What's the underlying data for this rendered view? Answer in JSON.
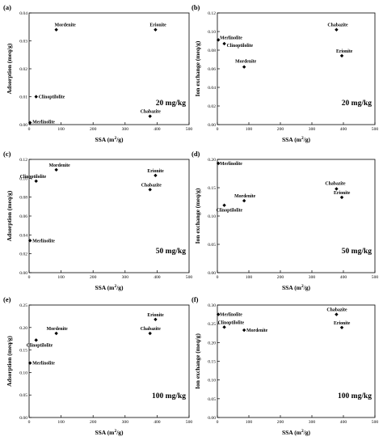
{
  "figure": {
    "panels": [
      {
        "letter": "(a)",
        "concentration": "20 mg/kg",
        "chart_data": {
          "type": "scatter",
          "xlabel_main": "SSA (m",
          "xlabel_sup": "2",
          "xlabel_tail": "/g)",
          "ylabel": "Adsorption (meq/g)",
          "xlim": [
            0,
            500
          ],
          "ylim": [
            0,
            0.04
          ],
          "xticks": [
            "0",
            "100",
            "200",
            "300",
            "400",
            "500"
          ],
          "yticks": [
            "0.00",
            "0.01",
            "0.02",
            "0.03",
            "0.04"
          ],
          "points": [
            {
              "label": "Mordenite",
              "x": 85,
              "y": 0.034
            },
            {
              "label": "Erionite",
              "x": 395,
              "y": 0.034
            },
            {
              "label": "Clinoptilolite",
              "x": 22,
              "y": 0.01
            },
            {
              "label": "Chabazite",
              "x": 378,
              "y": 0.003
            },
            {
              "label": "Merlinolite",
              "x": 3,
              "y": 0.0007
            }
          ]
        }
      },
      {
        "letter": "(b)",
        "concentration": "20 mg/kg",
        "chart_data": {
          "type": "scatter",
          "xlabel_main": "SSA (m",
          "xlabel_sup": "2",
          "xlabel_tail": "/g)",
          "ylabel": "Ion exchange (meq/g)",
          "xlim": [
            0,
            500
          ],
          "ylim": [
            0,
            0.12
          ],
          "xticks": [
            "0",
            "100",
            "200",
            "300",
            "400",
            "500"
          ],
          "yticks": [
            "0.00",
            "0.02",
            "0.04",
            "0.06",
            "0.08",
            "0.10",
            "0.12"
          ],
          "points": [
            {
              "label": "Merlinolite",
              "x": 3,
              "y": 0.091
            },
            {
              "label": "Clinoptilolite",
              "x": 22,
              "y": 0.087
            },
            {
              "label": "Mordenite",
              "x": 85,
              "y": 0.062
            },
            {
              "label": "Chabazite",
              "x": 378,
              "y": 0.102
            },
            {
              "label": "Erionite",
              "x": 395,
              "y": 0.074
            }
          ]
        }
      },
      {
        "letter": "(c)",
        "concentration": "50 mg/kg",
        "chart_data": {
          "type": "scatter",
          "xlabel_main": "SSA (m",
          "xlabel_sup": "2",
          "xlabel_tail": "/g)",
          "ylabel": "Adsorption (meq/g)",
          "xlim": [
            0,
            500
          ],
          "ylim": [
            0,
            0.12
          ],
          "xticks": [
            "0",
            "100",
            "200",
            "300",
            "400",
            "500"
          ],
          "yticks": [
            "0.00",
            "0.02",
            "0.04",
            "0.06",
            "0.08",
            "0.10",
            "0.12"
          ],
          "points": [
            {
              "label": "Mordenite",
              "x": 85,
              "y": 0.109
            },
            {
              "label": "Clinoptilolite",
              "x": 22,
              "y": 0.097
            },
            {
              "label": "Erionite",
              "x": 395,
              "y": 0.103
            },
            {
              "label": "Chabazite",
              "x": 378,
              "y": 0.088
            },
            {
              "label": "Merlinolite",
              "x": 3,
              "y": 0.034
            }
          ]
        }
      },
      {
        "letter": "(d)",
        "concentration": "50 mg/kg",
        "chart_data": {
          "type": "scatter",
          "xlabel_main": "SSA (m",
          "xlabel_sup": "2",
          "xlabel_tail": "/g)",
          "ylabel": "Ion exchange (meq/g)",
          "xlim": [
            0,
            500
          ],
          "ylim": [
            0,
            0.2
          ],
          "xticks": [
            "0",
            "100",
            "200",
            "300",
            "400",
            "500"
          ],
          "yticks": [
            "0.00",
            "0.05",
            "0.10",
            "0.15",
            "0.20"
          ],
          "points": [
            {
              "label": "Merlinolite",
              "x": 3,
              "y": 0.193
            },
            {
              "label": "Mordenite",
              "x": 85,
              "y": 0.127
            },
            {
              "label": "Clinoptilolite",
              "x": 22,
              "y": 0.119
            },
            {
              "label": "Chabazite",
              "x": 378,
              "y": 0.148
            },
            {
              "label": "Erionite",
              "x": 395,
              "y": 0.133
            }
          ]
        }
      },
      {
        "letter": "(e)",
        "concentration": "100 mg/kg",
        "chart_data": {
          "type": "scatter",
          "xlabel_main": "SSA (m",
          "xlabel_sup": "2",
          "xlabel_tail": "/g)",
          "ylabel": "Adsorption (meq/g)",
          "xlim": [
            0,
            500
          ],
          "ylim": [
            0,
            0.25
          ],
          "xticks": [
            "0",
            "100",
            "200",
            "300",
            "400",
            "500"
          ],
          "yticks": [
            "0.00",
            "0.05",
            "0.10",
            "0.15",
            "0.20",
            "0.25"
          ],
          "points": [
            {
              "label": "Mordenite",
              "x": 85,
              "y": 0.187
            },
            {
              "label": "Clinoptilolite",
              "x": 22,
              "y": 0.172
            },
            {
              "label": "Merlinolite",
              "x": 3,
              "y": 0.121
            },
            {
              "label": "Erionite",
              "x": 395,
              "y": 0.218
            },
            {
              "label": "Chabazite",
              "x": 378,
              "y": 0.187
            }
          ]
        }
      },
      {
        "letter": "(f)",
        "concentration": "100 mg/kg",
        "chart_data": {
          "type": "scatter",
          "xlabel_main": "SSA (m",
          "xlabel_sup": "2",
          "xlabel_tail": "/g)",
          "ylabel": "Ion exchange (meq/g)",
          "xlim": [
            0,
            500
          ],
          "ylim": [
            0,
            0.3
          ],
          "xticks": [
            "0",
            "100",
            "200",
            "300",
            "400",
            "500"
          ],
          "yticks": [
            "0.00",
            "0.05",
            "0.10",
            "0.15",
            "0.20",
            "0.25",
            "0.30"
          ],
          "points": [
            {
              "label": "Merlinolite",
              "x": 3,
              "y": 0.275
            },
            {
              "label": "Clinoptilolite",
              "x": 22,
              "y": 0.241
            },
            {
              "label": "Mordenite",
              "x": 85,
              "y": 0.233
            },
            {
              "label": "Chabazite",
              "x": 378,
              "y": 0.275
            },
            {
              "label": "Erionite",
              "x": 395,
              "y": 0.24
            }
          ]
        }
      }
    ]
  }
}
